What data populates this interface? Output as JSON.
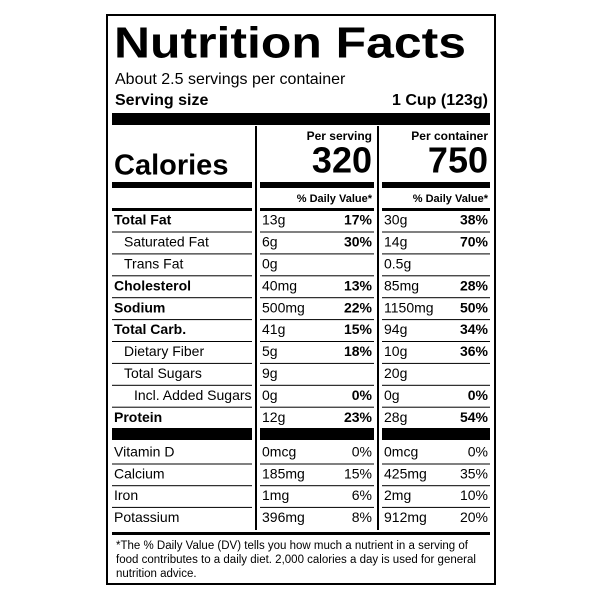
{
  "header": {
    "title": "Nutrition Facts",
    "servings": "About 2.5 servings per container",
    "serving_size_label": "Serving size",
    "serving_size_value": "1 Cup (123g)"
  },
  "calories_label": "Calories",
  "columns": [
    {
      "heading": "Per serving",
      "calories": "320",
      "dv_heading": "% Daily Value*"
    },
    {
      "heading": "Per container",
      "calories": "750",
      "dv_heading": "% Daily Value*"
    }
  ],
  "nutrients": [
    {
      "name": "Total Fat",
      "bold": true,
      "indent": 0,
      "serving": {
        "amount": "13g",
        "dv": "17%"
      },
      "container": {
        "amount": "30g",
        "dv": "38%"
      }
    },
    {
      "name": "Saturated Fat",
      "bold": false,
      "indent": 1,
      "serving": {
        "amount": "6g",
        "dv": "30%"
      },
      "container": {
        "amount": "14g",
        "dv": "70%"
      }
    },
    {
      "name": "Trans Fat",
      "bold": false,
      "indent": 1,
      "serving": {
        "amount": "0g"
      },
      "container": {
        "amount": "0.5g"
      }
    },
    {
      "name": "Cholesterol",
      "bold": true,
      "indent": 0,
      "serving": {
        "amount": "40mg",
        "dv": "13%"
      },
      "container": {
        "amount": "85mg",
        "dv": "28%"
      }
    },
    {
      "name": "Sodium",
      "bold": true,
      "indent": 0,
      "serving": {
        "amount": "500mg",
        "dv": "22%"
      },
      "container": {
        "amount": "1150mg",
        "dv": "50%"
      }
    },
    {
      "name": "Total Carb.",
      "bold": true,
      "indent": 0,
      "serving": {
        "amount": "41g",
        "dv": "15%"
      },
      "container": {
        "amount": "94g",
        "dv": "34%"
      }
    },
    {
      "name": "Dietary Fiber",
      "bold": false,
      "indent": 1,
      "serving": {
        "amount": "5g",
        "dv": "18%"
      },
      "container": {
        "amount": "10g",
        "dv": "36%"
      }
    },
    {
      "name": "Total Sugars",
      "bold": false,
      "indent": 1,
      "serving": {
        "amount": "9g"
      },
      "container": {
        "amount": "20g"
      }
    },
    {
      "name": "Incl. Added Sugars",
      "bold": false,
      "indent": 2,
      "serving": {
        "amount": "0g",
        "dv": "0%"
      },
      "container": {
        "amount": "0g",
        "dv": "0%"
      }
    },
    {
      "name": "Protein",
      "bold": true,
      "indent": 0,
      "serving": {
        "amount": "12g",
        "dv": "23%"
      },
      "container": {
        "amount": "28g",
        "dv": "54%"
      }
    }
  ],
  "vitamins": [
    {
      "name": "Vitamin D",
      "serving": {
        "amount": "0mcg",
        "dv": "0%"
      },
      "container": {
        "amount": "0mcg",
        "dv": "0%"
      }
    },
    {
      "name": "Calcium",
      "serving": {
        "amount": "185mg",
        "dv": "15%"
      },
      "container": {
        "amount": "425mg",
        "dv": "35%"
      }
    },
    {
      "name": "Iron",
      "serving": {
        "amount": "1mg",
        "dv": "6%"
      },
      "container": {
        "amount": "2mg",
        "dv": "10%"
      }
    },
    {
      "name": "Potassium",
      "serving": {
        "amount": "396mg",
        "dv": "8%"
      },
      "container": {
        "amount": "912mg",
        "dv": "20%"
      }
    }
  ],
  "footnote": [
    "*The % Daily Value (DV) tells you how much a nutrient in a serving of",
    "food contributes to a daily diet. 2,000 calories a day is used for general",
    "nutrition advice."
  ]
}
